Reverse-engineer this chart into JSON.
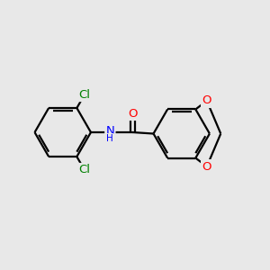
{
  "bg_color": "#e8e8e8",
  "bond_color": "#000000",
  "bond_width": 1.6,
  "atom_colors": {
    "Cl": "#008000",
    "N": "#0000ff",
    "H": "#0000ff",
    "O": "#ff0000",
    "C": "#000000"
  },
  "font_size_atom": 9.5,
  "fig_width": 3.0,
  "fig_height": 3.0,
  "dpi": 100,
  "xlim": [
    0,
    10
  ],
  "ylim": [
    0,
    10
  ]
}
